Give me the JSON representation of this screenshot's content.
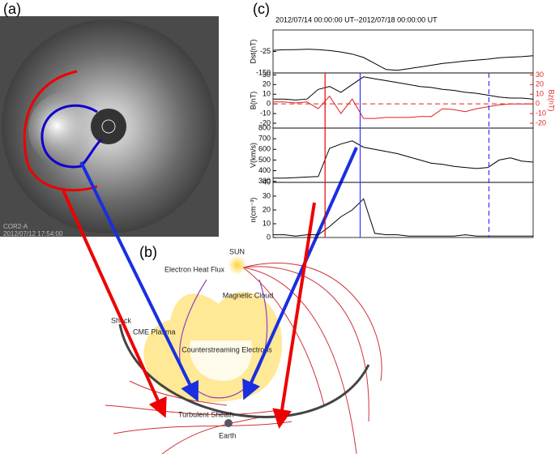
{
  "panel_labels": [
    "(a)",
    "(b)",
    "(c)"
  ],
  "panel_a": {
    "instrument": "COR2-A",
    "timestamp": "2012/07/12 17:54:00"
  },
  "panel_b": {
    "labels": {
      "sun": "SUN",
      "heat_flux": "Electron Heat Flux",
      "cloud": "Magnetic Cloud",
      "shock": "Shock",
      "plasma": "CME Plasma",
      "electrons": "Counterstreaming Electrons",
      "sheath": "Turbulent Sheath",
      "earth": "Earth"
    }
  },
  "panel_c": {
    "header": "2012/07/14 00:00:00 UT--2012/07/18 00:00:00 UT",
    "plots": [
      {
        "type": "line",
        "ylabel": "Dst(nT)",
        "ylim": [
          -150,
          100
        ],
        "yticks": [
          -25,
          -150
        ],
        "series": [
          {
            "name": "Dst",
            "color": "#000000",
            "values": [
              -18,
              -15,
              -14,
              -12,
              -14,
              -20,
              -28,
              -40,
              -60,
              -95,
              -130,
              -135,
              -125,
              -115,
              -105,
              -95,
              -88,
              -80,
              -75,
              -70,
              -62,
              -58,
              -55,
              -50
            ]
          }
        ]
      },
      {
        "type": "line",
        "ylabel": "B(nT)",
        "y2label": "Bz(nT)",
        "ylim": [
          -25,
          32
        ],
        "yticks": [
          30,
          20,
          10,
          0,
          -10,
          -20
        ],
        "y2lim": [
          -25,
          32
        ],
        "y2ticks": [
          30,
          20,
          10,
          0,
          -10,
          -20
        ],
        "series": [
          {
            "name": "B",
            "color": "#000000",
            "values": [
              5,
              5,
              4,
              5,
              15,
              18,
              12,
              20,
              28,
              26,
              24,
              22,
              20,
              18,
              17,
              15,
              14,
              12,
              11,
              9,
              7,
              6,
              6,
              5
            ]
          },
          {
            "name": "Bz",
            "color": "#e02020",
            "axis": "y2",
            "values": [
              2,
              2,
              1,
              2,
              -5,
              8,
              -10,
              5,
              -15,
              -15,
              -14,
              -14,
              -14,
              -13,
              -13,
              -5,
              -6,
              -8,
              -5,
              -3,
              -1,
              0,
              0,
              0
            ]
          }
        ]
      },
      {
        "type": "line",
        "ylabel": "V(km/s)",
        "ylim": [
          290,
          800
        ],
        "yticks": [
          800,
          700,
          600,
          500,
          400,
          300
        ],
        "series": [
          {
            "name": "V",
            "color": "#000000",
            "values": [
              330,
              330,
              335,
              340,
              345,
              610,
              650,
              680,
              620,
              600,
              580,
              560,
              530,
              500,
              470,
              460,
              440,
              430,
              420,
              430,
              500,
              520,
              490,
              480
            ]
          }
        ]
      },
      {
        "type": "line",
        "ylabel": "n(cm⁻³)",
        "ylim": [
          0,
          40
        ],
        "yticks": [
          40,
          30,
          20,
          10,
          0
        ],
        "series": [
          {
            "name": "n",
            "color": "#000000",
            "values": [
              2,
              2,
              1,
              2,
              2,
              8,
              15,
              20,
              28,
              3,
              2,
              2,
              1,
              1,
              1,
              1,
              1,
              2,
              1,
              1,
              1,
              1,
              1,
              1
            ]
          }
        ]
      }
    ]
  }
}
